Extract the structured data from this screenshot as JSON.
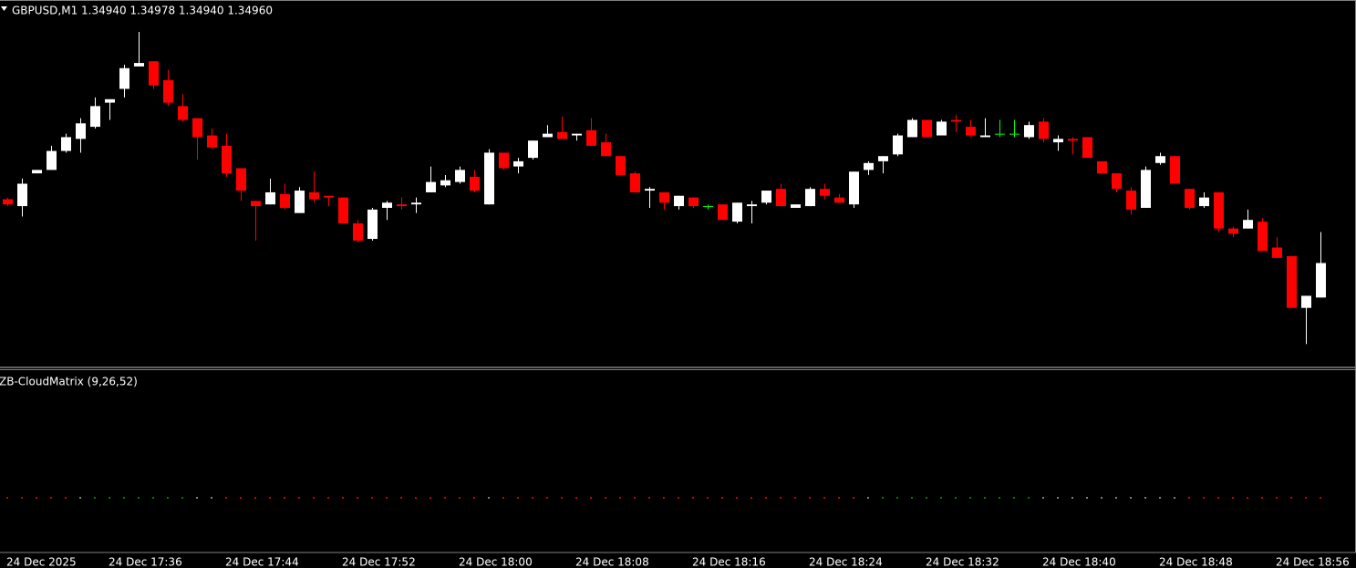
{
  "chart_data": [
    {
      "type": "candlestick",
      "title": "GBPUSD,M1  1.34940 1.34978 1.34940 1.34960",
      "categories": [
        "24 Dec 2025",
        null,
        null,
        null,
        null,
        null,
        null,
        "24 Dec 17:36",
        null,
        null,
        null,
        null,
        null,
        null,
        null,
        "24 Dec 17:44",
        null,
        null,
        null,
        null,
        null,
        null,
        null,
        "24 Dec 17:52",
        null,
        null,
        null,
        null,
        null,
        null,
        null,
        "24 Dec 18:00",
        null,
        null,
        null,
        null,
        null,
        null,
        null,
        "24 Dec 18:08",
        null,
        null,
        null,
        null,
        null,
        null,
        null,
        "24 Dec 18:16",
        null,
        null,
        null,
        null,
        null,
        null,
        null,
        "24 Dec 18:24",
        null,
        null,
        null,
        null,
        null,
        null,
        null,
        "24 Dec 18:32",
        null,
        null,
        null,
        null,
        null,
        null,
        null,
        "24 Dec 18:40",
        null,
        null,
        null,
        null,
        null,
        null,
        null,
        "24 Dec 18:48",
        null,
        null,
        null,
        null,
        null,
        null,
        null,
        "24 Dec 18:56",
        null,
        null,
        null
      ],
      "open": [
        1.34997,
        1.34993,
        1.35012,
        1.35014,
        1.35025,
        1.35032,
        1.35039,
        1.35053,
        1.35061,
        1.35074,
        1.35077,
        1.35066,
        1.35051,
        1.35044,
        1.35034,
        1.35028,
        1.35015,
        1.34996,
        1.34994,
        1.35,
        1.34989,
        1.35001,
        1.34999,
        1.34998,
        1.34983,
        1.34974,
        1.34992,
        1.34994,
        1.34994,
        1.35001,
        1.35005,
        1.35007,
        1.3501,
        1.34994,
        1.35024,
        1.35016,
        1.35021,
        1.35033,
        1.35036,
        1.35034,
        1.35037,
        1.3503,
        1.35022,
        1.35012,
        1.35002,
        1.35001,
        1.34993,
        1.34998,
        1.34993,
        1.34994,
        1.34984,
        1.34993,
        1.34995,
        1.35003,
        1.34992,
        1.34993,
        1.35003,
        1.34998,
        1.34994,
        1.35014,
        1.35019,
        1.35023,
        1.35033,
        1.35043,
        1.35034,
        1.35043,
        1.35039,
        1.35033,
        1.35035,
        1.35035,
        1.35033,
        1.35042,
        1.3503,
        1.35032,
        1.35033,
        1.35019,
        1.35012,
        1.35002,
        1.34992,
        1.35018,
        1.35022,
        1.35003,
        1.34993,
        1.35001,
        1.3498,
        1.3498,
        1.34984,
        1.34969,
        1.34964,
        1.34934,
        1.3494
      ],
      "high": [
        1.34998,
        1.35009,
        1.35014,
        1.35028,
        1.35035,
        1.35044,
        1.35056,
        1.35055,
        1.35075,
        1.35094,
        1.35077,
        1.35072,
        1.35058,
        1.35044,
        1.35038,
        1.35035,
        1.35015,
        1.34996,
        1.35009,
        1.35006,
        1.35004,
        1.35013,
        1.34999,
        1.34998,
        1.34985,
        1.34992,
        1.34996,
        1.34998,
        1.34998,
        1.35016,
        1.35011,
        1.35016,
        1.35014,
        1.35026,
        1.35024,
        1.35021,
        1.35031,
        1.3504,
        1.35045,
        1.35035,
        1.35044,
        1.35035,
        1.35022,
        1.35013,
        1.35004,
        1.35001,
        1.34999,
        1.34998,
        1.34994,
        1.34994,
        1.34995,
        1.34996,
        1.35002,
        1.35006,
        1.34994,
        1.35004,
        1.35006,
        1.35,
        1.35013,
        1.35019,
        1.35022,
        1.35035,
        1.35044,
        1.35043,
        1.35043,
        1.35046,
        1.35043,
        1.35044,
        1.35043,
        1.35043,
        1.35042,
        1.35044,
        1.35034,
        1.35033,
        1.35033,
        1.35019,
        1.35012,
        1.35004,
        1.35016,
        1.35024,
        1.35022,
        1.35003,
        1.35001,
        1.35001,
        1.34981,
        1.34991,
        1.34986,
        1.34975,
        1.34964,
        1.34941,
        1.34978
      ],
      "low": [
        1.34993,
        1.34987,
        1.35012,
        1.35014,
        1.35024,
        1.35024,
        1.35038,
        1.35043,
        1.35056,
        1.35074,
        1.35061,
        1.35051,
        1.35042,
        1.3502,
        1.35026,
        1.3501,
        1.34996,
        1.34973,
        1.34994,
        1.34991,
        1.34989,
        1.34995,
        1.34993,
        1.34983,
        1.34972,
        1.34973,
        1.34985,
        1.34991,
        1.34989,
        1.35001,
        1.35004,
        1.35006,
        1.35001,
        1.34994,
        1.35014,
        1.35012,
        1.3502,
        1.35033,
        1.35032,
        1.35031,
        1.35028,
        1.35022,
        1.35011,
        1.35001,
        1.34992,
        1.34991,
        1.34991,
        1.34992,
        1.34991,
        1.34985,
        1.34983,
        1.34983,
        1.34994,
        1.34993,
        1.34992,
        1.34993,
        1.34997,
        1.34995,
        1.34992,
        1.35011,
        1.35012,
        1.35022,
        1.35033,
        1.35033,
        1.35034,
        1.35036,
        1.35033,
        1.35033,
        1.35033,
        1.35033,
        1.35032,
        1.3503,
        1.35025,
        1.35023,
        1.35021,
        1.35012,
        1.35001,
        1.34988,
        1.34992,
        1.35017,
        1.35006,
        1.34991,
        1.34992,
        1.34978,
        1.34975,
        1.3498,
        1.34967,
        1.34963,
        1.34934,
        1.34913,
        1.3494
      ],
      "close": [
        1.34994,
        1.35006,
        1.35014,
        1.35025,
        1.35033,
        1.35041,
        1.35051,
        1.35055,
        1.35073,
        1.35076,
        1.35063,
        1.35053,
        1.35043,
        1.35033,
        1.35027,
        1.35012,
        1.35002,
        1.34993,
        1.35001,
        1.34992,
        1.35002,
        1.34997,
        1.34998,
        1.34983,
        1.34973,
        1.34991,
        1.34995,
        1.34993,
        1.34995,
        1.35007,
        1.35008,
        1.35014,
        1.35002,
        1.35024,
        1.35015,
        1.35019,
        1.35031,
        1.35035,
        1.35032,
        1.35035,
        1.35028,
        1.35022,
        1.35011,
        1.35001,
        1.35003,
        1.34995,
        1.34999,
        1.34993,
        1.34993,
        1.34985,
        1.34995,
        1.34994,
        1.35002,
        1.34993,
        1.34994,
        1.35003,
        1.34999,
        1.34995,
        1.35013,
        1.35018,
        1.35022,
        1.35034,
        1.35043,
        1.35033,
        1.35042,
        1.35042,
        1.35034,
        1.35034,
        1.35035,
        1.35035,
        1.3504,
        1.35032,
        1.35032,
        1.35031,
        1.35021,
        1.35012,
        1.35003,
        1.34991,
        1.35014,
        1.35022,
        1.35006,
        1.34992,
        1.34998,
        1.3498,
        1.34977,
        1.34985,
        1.34967,
        1.34963,
        1.34934,
        1.34941,
        1.3496
      ],
      "ylim": [
        1.349,
        1.35112
      ],
      "up_color": "#ffffff",
      "down_color": "#ff0000",
      "doji_color": "#00ff00"
    },
    {
      "type": "dots",
      "title": "ZB-CloudMatrix (9,26,52)",
      "dot_colors": [
        "#d00000",
        "#d00000",
        "#d00000",
        "#d00000",
        "#d00000",
        "#808080",
        "#008000",
        "#008000",
        "#008000",
        "#008000",
        "#008000",
        "#008000",
        "#008000",
        "#808080",
        "#808080",
        "#d00000",
        "#d00000",
        "#d00000",
        "#d00000",
        "#d00000",
        "#d00000",
        "#d00000",
        "#d00000",
        "#d00000",
        "#d00000",
        "#d00000",
        "#d00000",
        "#d00000",
        "#d00000",
        "#d00000",
        "#d00000",
        "#d00000",
        "#d00000",
        "#808080",
        "#d00000",
        "#d00000",
        "#d00000",
        "#d00000",
        "#d00000",
        "#d00000",
        "#d00000",
        "#d00000",
        "#d00000",
        "#d00000",
        "#d00000",
        "#d00000",
        "#d00000",
        "#d00000",
        "#d00000",
        "#d00000",
        "#d00000",
        "#d00000",
        "#d00000",
        "#d00000",
        "#d00000",
        "#d00000",
        "#d00000",
        "#d00000",
        "#d00000",
        "#808080",
        "#008000",
        "#008000",
        "#008000",
        "#008000",
        "#008000",
        "#008000",
        "#008000",
        "#008000",
        "#008000",
        "#008000",
        "#008000",
        "#808080",
        "#808080",
        "#808080",
        "#808080",
        "#808080",
        "#808080",
        "#808080",
        "#808080",
        "#808080",
        "#808080",
        "#d00000",
        "#d00000",
        "#d00000",
        "#d00000",
        "#d00000",
        "#d00000",
        "#d00000",
        "#d00000",
        "#d00000",
        "#d00000"
      ]
    }
  ]
}
